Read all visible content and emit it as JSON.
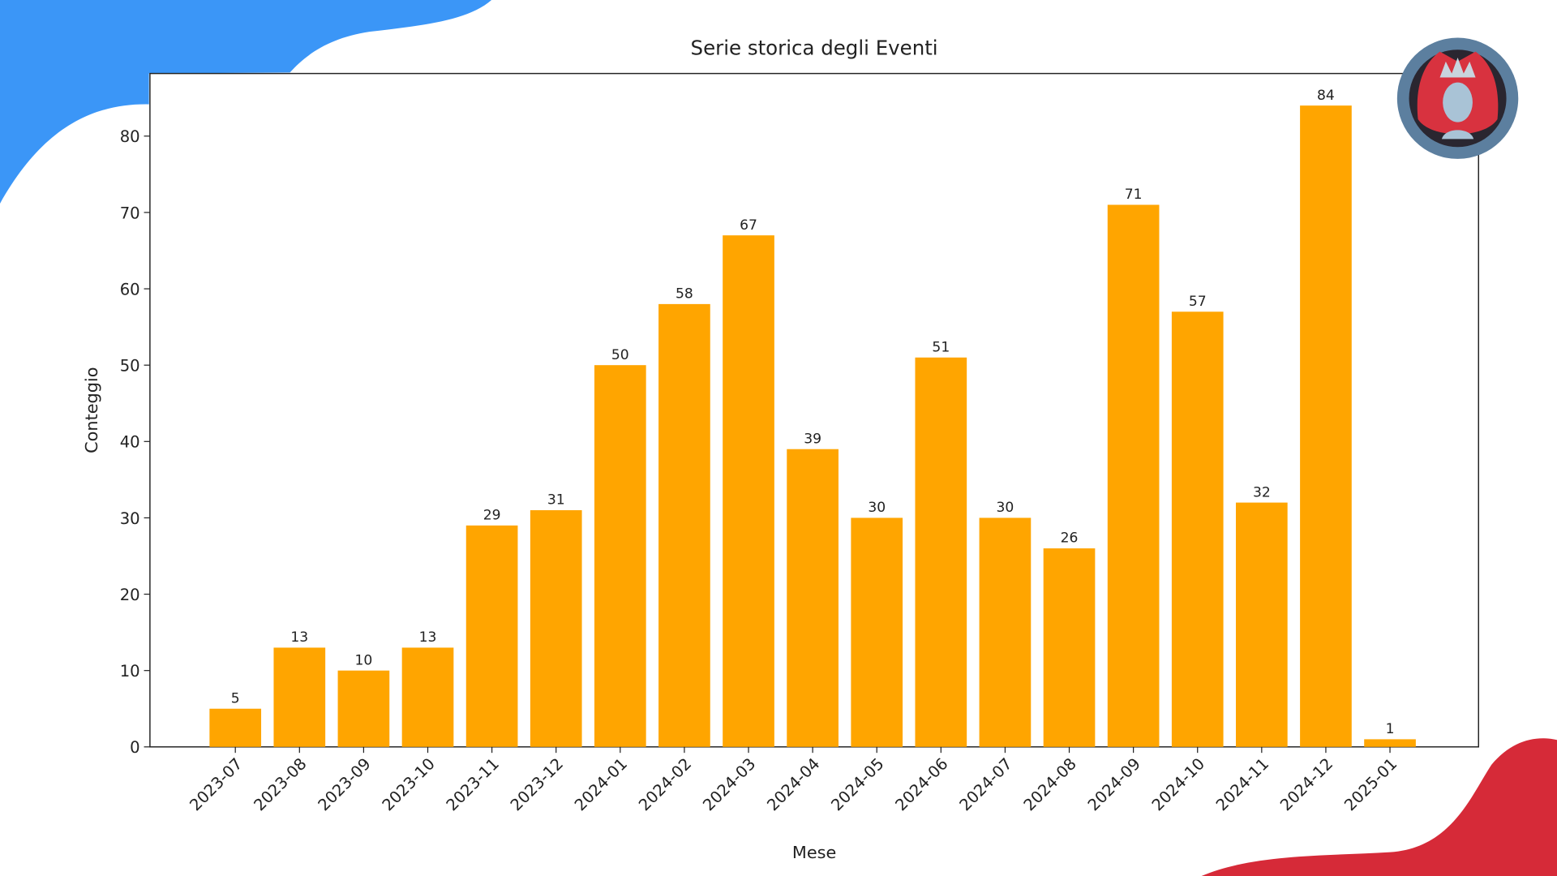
{
  "chart_data": {
    "type": "bar",
    "title": "Serie storica degli Eventi",
    "x_label": "Mese",
    "y_label": "Conteggio",
    "categories": [
      "2023-07",
      "2023-08",
      "2023-09",
      "2023-10",
      "2023-11",
      "2023-12",
      "2024-01",
      "2024-02",
      "2024-03",
      "2024-04",
      "2024-05",
      "2024-06",
      "2024-07",
      "2024-08",
      "2024-09",
      "2024-10",
      "2024-11",
      "2024-12",
      "2025-01"
    ],
    "values": [
      5,
      13,
      10,
      13,
      29,
      31,
      50,
      58,
      67,
      39,
      30,
      51,
      30,
      26,
      71,
      57,
      32,
      84,
      1
    ],
    "color": "#ffa500",
    "ylim": [
      0,
      88.2
    ],
    "yticks": [
      0,
      10,
      20,
      30,
      40,
      50,
      60,
      70,
      80
    ]
  }
}
